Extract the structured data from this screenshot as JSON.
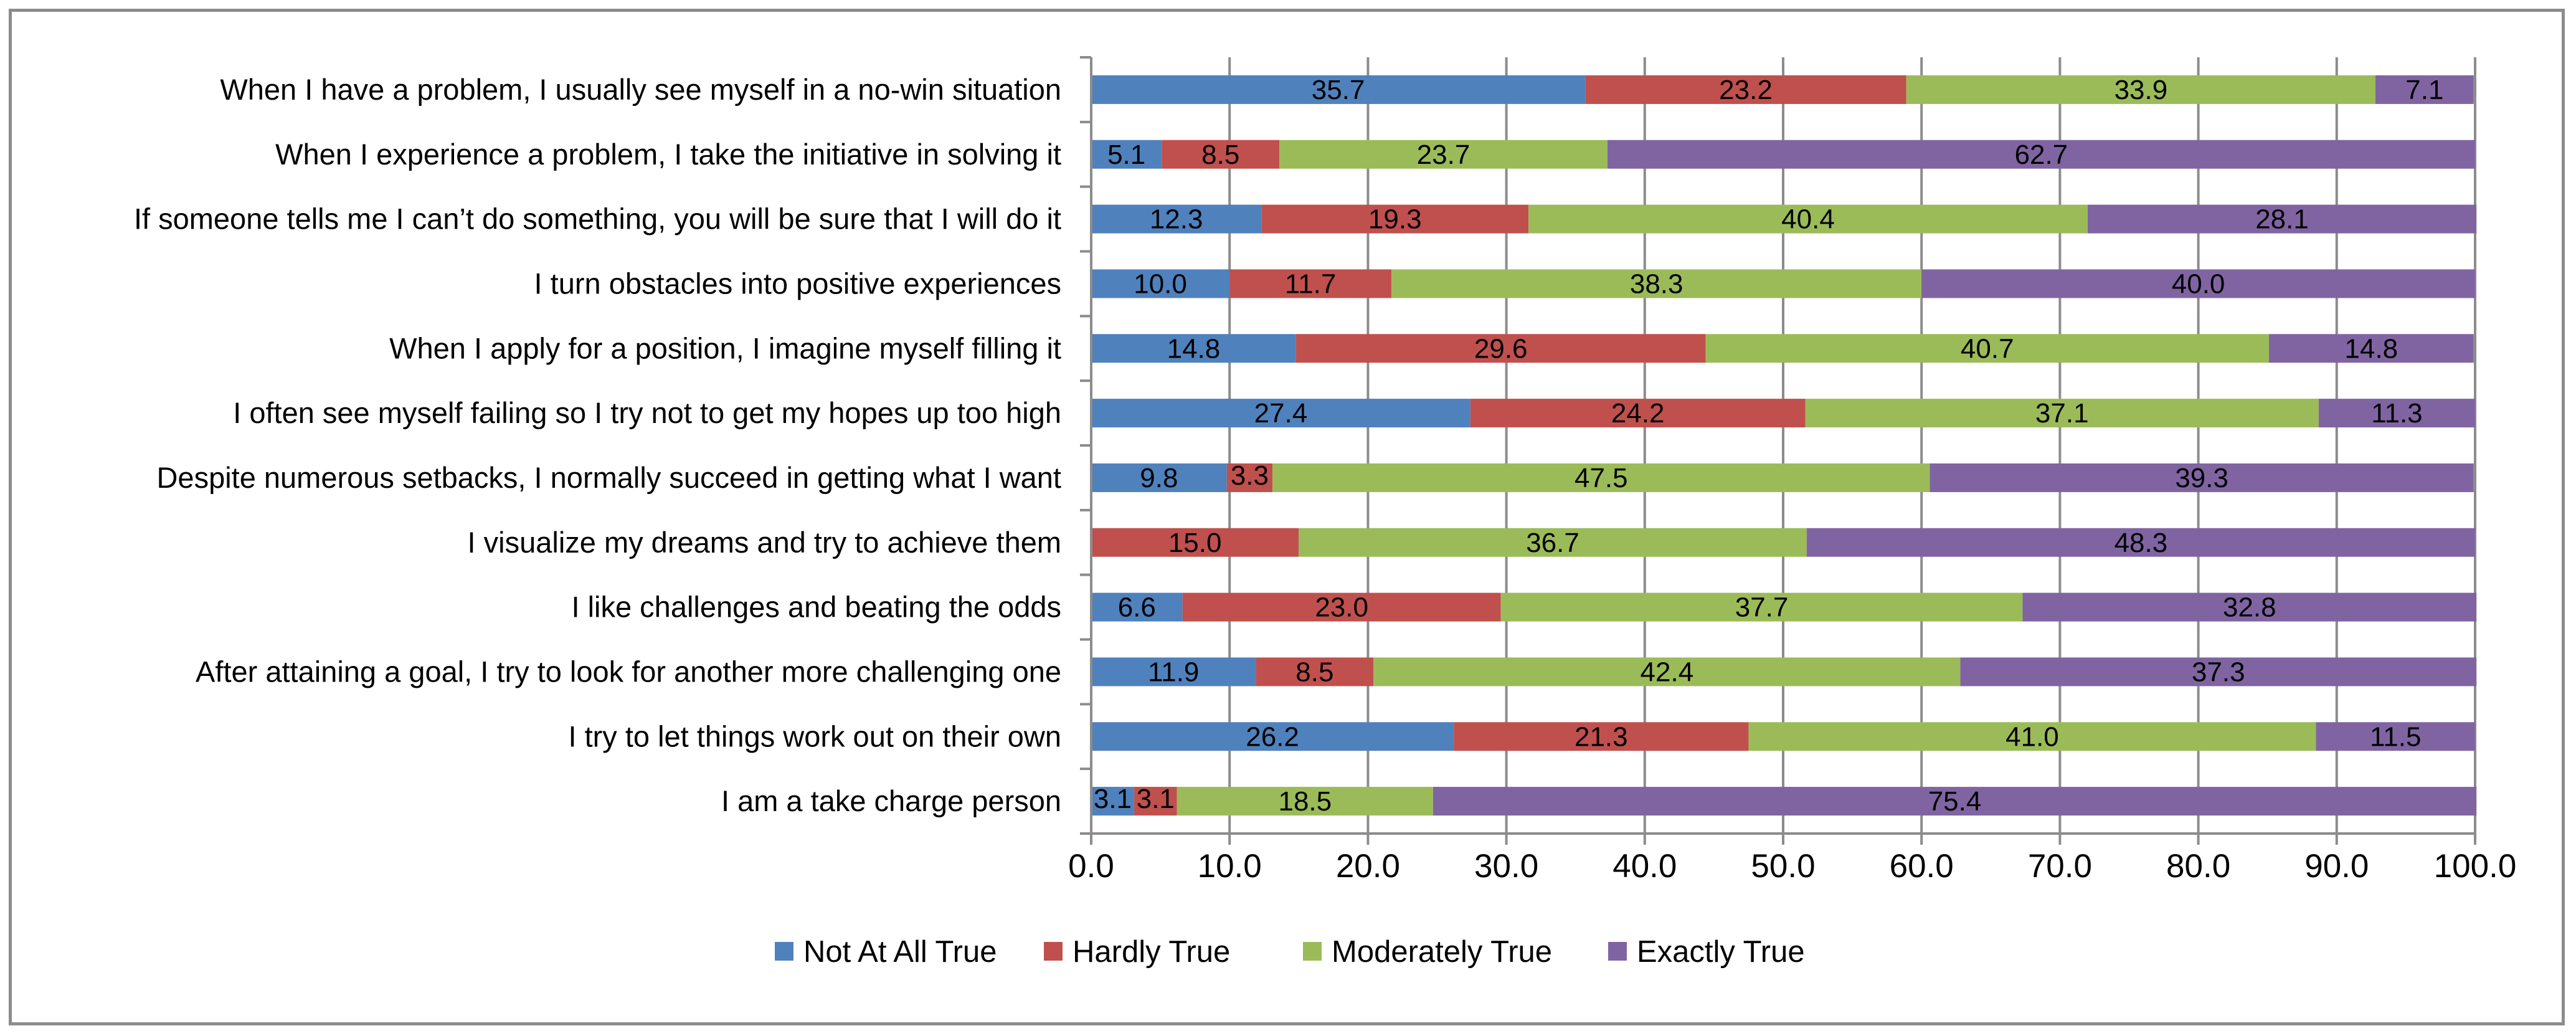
{
  "chart_data": {
    "type": "bar",
    "orientation": "horizontal",
    "stacked": true,
    "title": "",
    "xlabel": "",
    "ylabel": "",
    "xlim": [
      0,
      100
    ],
    "x_ticks": [
      "0.0",
      "10.0",
      "20.0",
      "30.0",
      "40.0",
      "50.0",
      "60.0",
      "70.0",
      "80.0",
      "90.0",
      "100.0"
    ],
    "grid": true,
    "legend_position": "bottom",
    "categories": [
      "When I have a problem, I usually see myself in a no-win situation",
      "When I experience a problem, I take the initiative in solving it",
      "If someone tells me I can’t do something, you will be sure that I will do it",
      "I turn obstacles into positive experiences",
      "When I apply for a position, I imagine myself filling it",
      "I often see myself failing so I try not to get my hopes up too high",
      "Despite numerous setbacks, I normally succeed in getting what I want",
      "I visualize my dreams and try to achieve them",
      "I like challenges and beating the odds",
      "After attaining a goal, I try to look for another more challenging one",
      "I try to let things work out on their own",
      "I am a take charge person"
    ],
    "series": [
      {
        "name": "Not At All True",
        "color": "#4f81bd",
        "values": [
          35.7,
          5.1,
          12.3,
          10.0,
          14.8,
          27.4,
          9.8,
          0,
          6.6,
          11.9,
          26.2,
          3.1
        ],
        "labels": [
          "35.7",
          "5.1",
          "12.3",
          "10.0",
          "14.8",
          "27.4",
          "9.8",
          "",
          "6.6",
          "11.9",
          "26.2",
          "3.1"
        ]
      },
      {
        "name": "Hardly True",
        "color": "#c0504d",
        "values": [
          23.2,
          8.5,
          19.3,
          11.7,
          29.6,
          24.2,
          3.3,
          15.0,
          23.0,
          8.5,
          21.3,
          3.1
        ],
        "labels": [
          "23.2",
          "8.5",
          "19.3",
          "11.7",
          "29.6",
          "24.2",
          "3.3",
          "15.0",
          "23.0",
          "8.5",
          "21.3",
          "3.1"
        ]
      },
      {
        "name": "Moderately True",
        "color": "#9bbb59",
        "values": [
          33.9,
          23.7,
          40.4,
          38.3,
          40.7,
          37.1,
          47.5,
          36.7,
          37.7,
          42.4,
          41.0,
          18.5
        ],
        "labels": [
          "33.9",
          "23.7",
          "40.4",
          "38.3",
          "40.7",
          "37.1",
          "47.5",
          "36.7",
          "37.7",
          "42.4",
          "41.0",
          "18.5"
        ]
      },
      {
        "name": "Exactly True",
        "color": "#8064a2",
        "values": [
          7.1,
          62.7,
          28.1,
          40.0,
          14.8,
          11.3,
          39.3,
          48.3,
          32.8,
          37.3,
          11.5,
          75.4
        ],
        "labels": [
          "7.1",
          "62.7",
          "28.1",
          "40.0",
          "14.8",
          "11.3",
          "39.3",
          "48.3",
          "32.8",
          "37.3",
          "11.5",
          "75.4"
        ]
      }
    ]
  }
}
